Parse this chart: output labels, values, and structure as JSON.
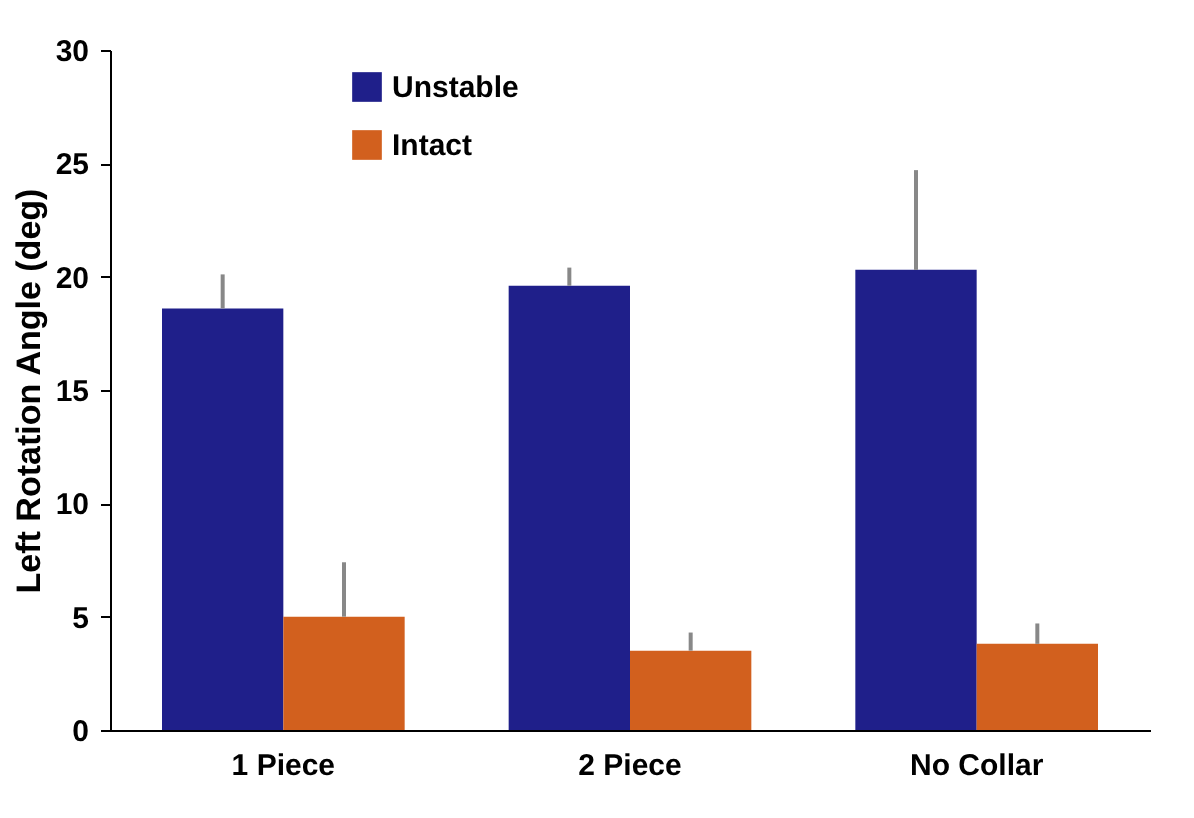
{
  "chart_data": {
    "type": "bar",
    "ylabel": "Left Rotation Angle (deg)",
    "categories": [
      "1 Piece",
      "2 Piece",
      "No Collar"
    ],
    "series": [
      {
        "name": "Unstable",
        "color": "#1f1f8a",
        "values": [
          18.6,
          19.6,
          20.3
        ],
        "errors": [
          [
            18.6,
            20.1
          ],
          [
            19.6,
            20.4
          ],
          [
            20.3,
            24.7
          ]
        ]
      },
      {
        "name": "Intact",
        "color": "#d2601e",
        "values": [
          5.0,
          3.5,
          3.8
        ],
        "errors": [
          [
            5.0,
            7.4
          ],
          [
            3.5,
            4.3
          ],
          [
            3.8,
            4.7
          ]
        ]
      }
    ],
    "ylim": [
      0,
      30
    ],
    "yticks": [
      0,
      5,
      10,
      15,
      20,
      25,
      30
    ],
    "grid": false,
    "legend": "top left"
  }
}
